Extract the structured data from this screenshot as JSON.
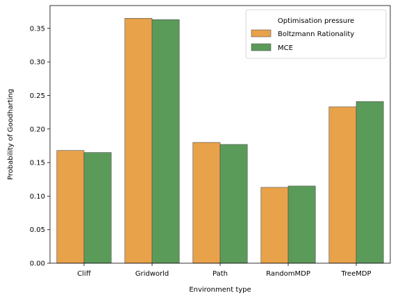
{
  "chart_data": {
    "type": "bar",
    "categories": [
      "Cliff",
      "Gridworld",
      "Path",
      "RandomMDP",
      "TreeMDP"
    ],
    "series": [
      {
        "name": "Boltzmann Rationality",
        "color": "#e8a24a",
        "values": [
          0.168,
          0.365,
          0.18,
          0.113,
          0.233
        ]
      },
      {
        "name": "MCE",
        "color": "#5b9b5a",
        "values": [
          0.165,
          0.363,
          0.177,
          0.115,
          0.241
        ]
      }
    ],
    "title": "",
    "xlabel": "Environment type",
    "ylabel": "Probability of Goodharting",
    "ylim": [
      0,
      0.384
    ],
    "yticks": [
      "0.00",
      "0.05",
      "0.10",
      "0.15",
      "0.20",
      "0.25",
      "0.30",
      "0.35"
    ],
    "legend": {
      "title": "Optimisation pressure",
      "placement": "top-right"
    },
    "grid": false
  }
}
